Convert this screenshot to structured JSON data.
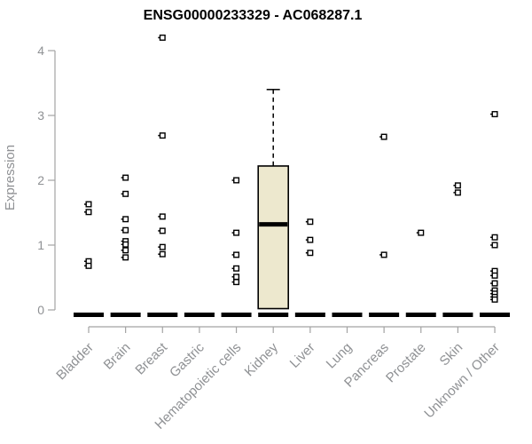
{
  "chart_data": {
    "type": "boxplot",
    "title": "ENSG00000233329 - AC068287.1",
    "ylabel": "Expression",
    "xlabel": "",
    "ylim": [
      0,
      4
    ],
    "yticks": [
      0,
      1,
      2,
      3,
      4
    ],
    "grid": false,
    "legend_position": "none",
    "categories": [
      "Bladder",
      "Brain",
      "Breast",
      "Gastric",
      "Hematopoietic cells",
      "Kidney",
      "Liver",
      "Lung",
      "Pancreas",
      "Prostate",
      "Skin",
      "Unknown / Other"
    ],
    "zero_bar_value": 0,
    "series": [
      {
        "category": "Bladder",
        "points": [
          1.63,
          1.51,
          0.75,
          0.68
        ]
      },
      {
        "category": "Brain",
        "points": [
          2.04,
          1.79,
          1.4,
          1.23,
          1.06,
          1.01,
          0.92,
          0.81
        ]
      },
      {
        "category": "Breast",
        "points": [
          4.2,
          2.69,
          1.44,
          1.22,
          0.97,
          0.86
        ]
      },
      {
        "category": "Gastric",
        "points": []
      },
      {
        "category": "Hematopoietic cells",
        "points": [
          2.0,
          1.19,
          0.85,
          0.64,
          0.51,
          0.43
        ]
      },
      {
        "category": "Kidney",
        "points": []
      },
      {
        "category": "Liver",
        "points": [
          1.36,
          1.08,
          0.88
        ]
      },
      {
        "category": "Lung",
        "points": []
      },
      {
        "category": "Pancreas",
        "points": [
          2.67,
          0.85
        ]
      },
      {
        "category": "Prostate",
        "points": [
          1.19
        ]
      },
      {
        "category": "Skin",
        "points": [
          1.92,
          1.81
        ]
      },
      {
        "category": "Unknown / Other",
        "points": [
          3.02,
          1.12,
          1.0,
          0.6,
          0.53,
          0.41,
          0.3,
          0.25,
          0.2,
          0.16
        ]
      }
    ],
    "boxes": [
      {
        "category": "Kidney",
        "q1": 0.02,
        "median": 1.32,
        "q3": 2.22,
        "whisker_high": 3.4,
        "whisker_low": 0.02
      }
    ]
  },
  "colors": {
    "background": "#ffffff",
    "title": "#000000",
    "axis": "#a3a3a3",
    "tick_label": "#8f9194",
    "box_fill": "#ede8ce",
    "box_stroke": "#000000",
    "median": "#000000",
    "point_stroke": "#000000",
    "point_fill": "#ffffff",
    "zero_bar": "#000000"
  }
}
